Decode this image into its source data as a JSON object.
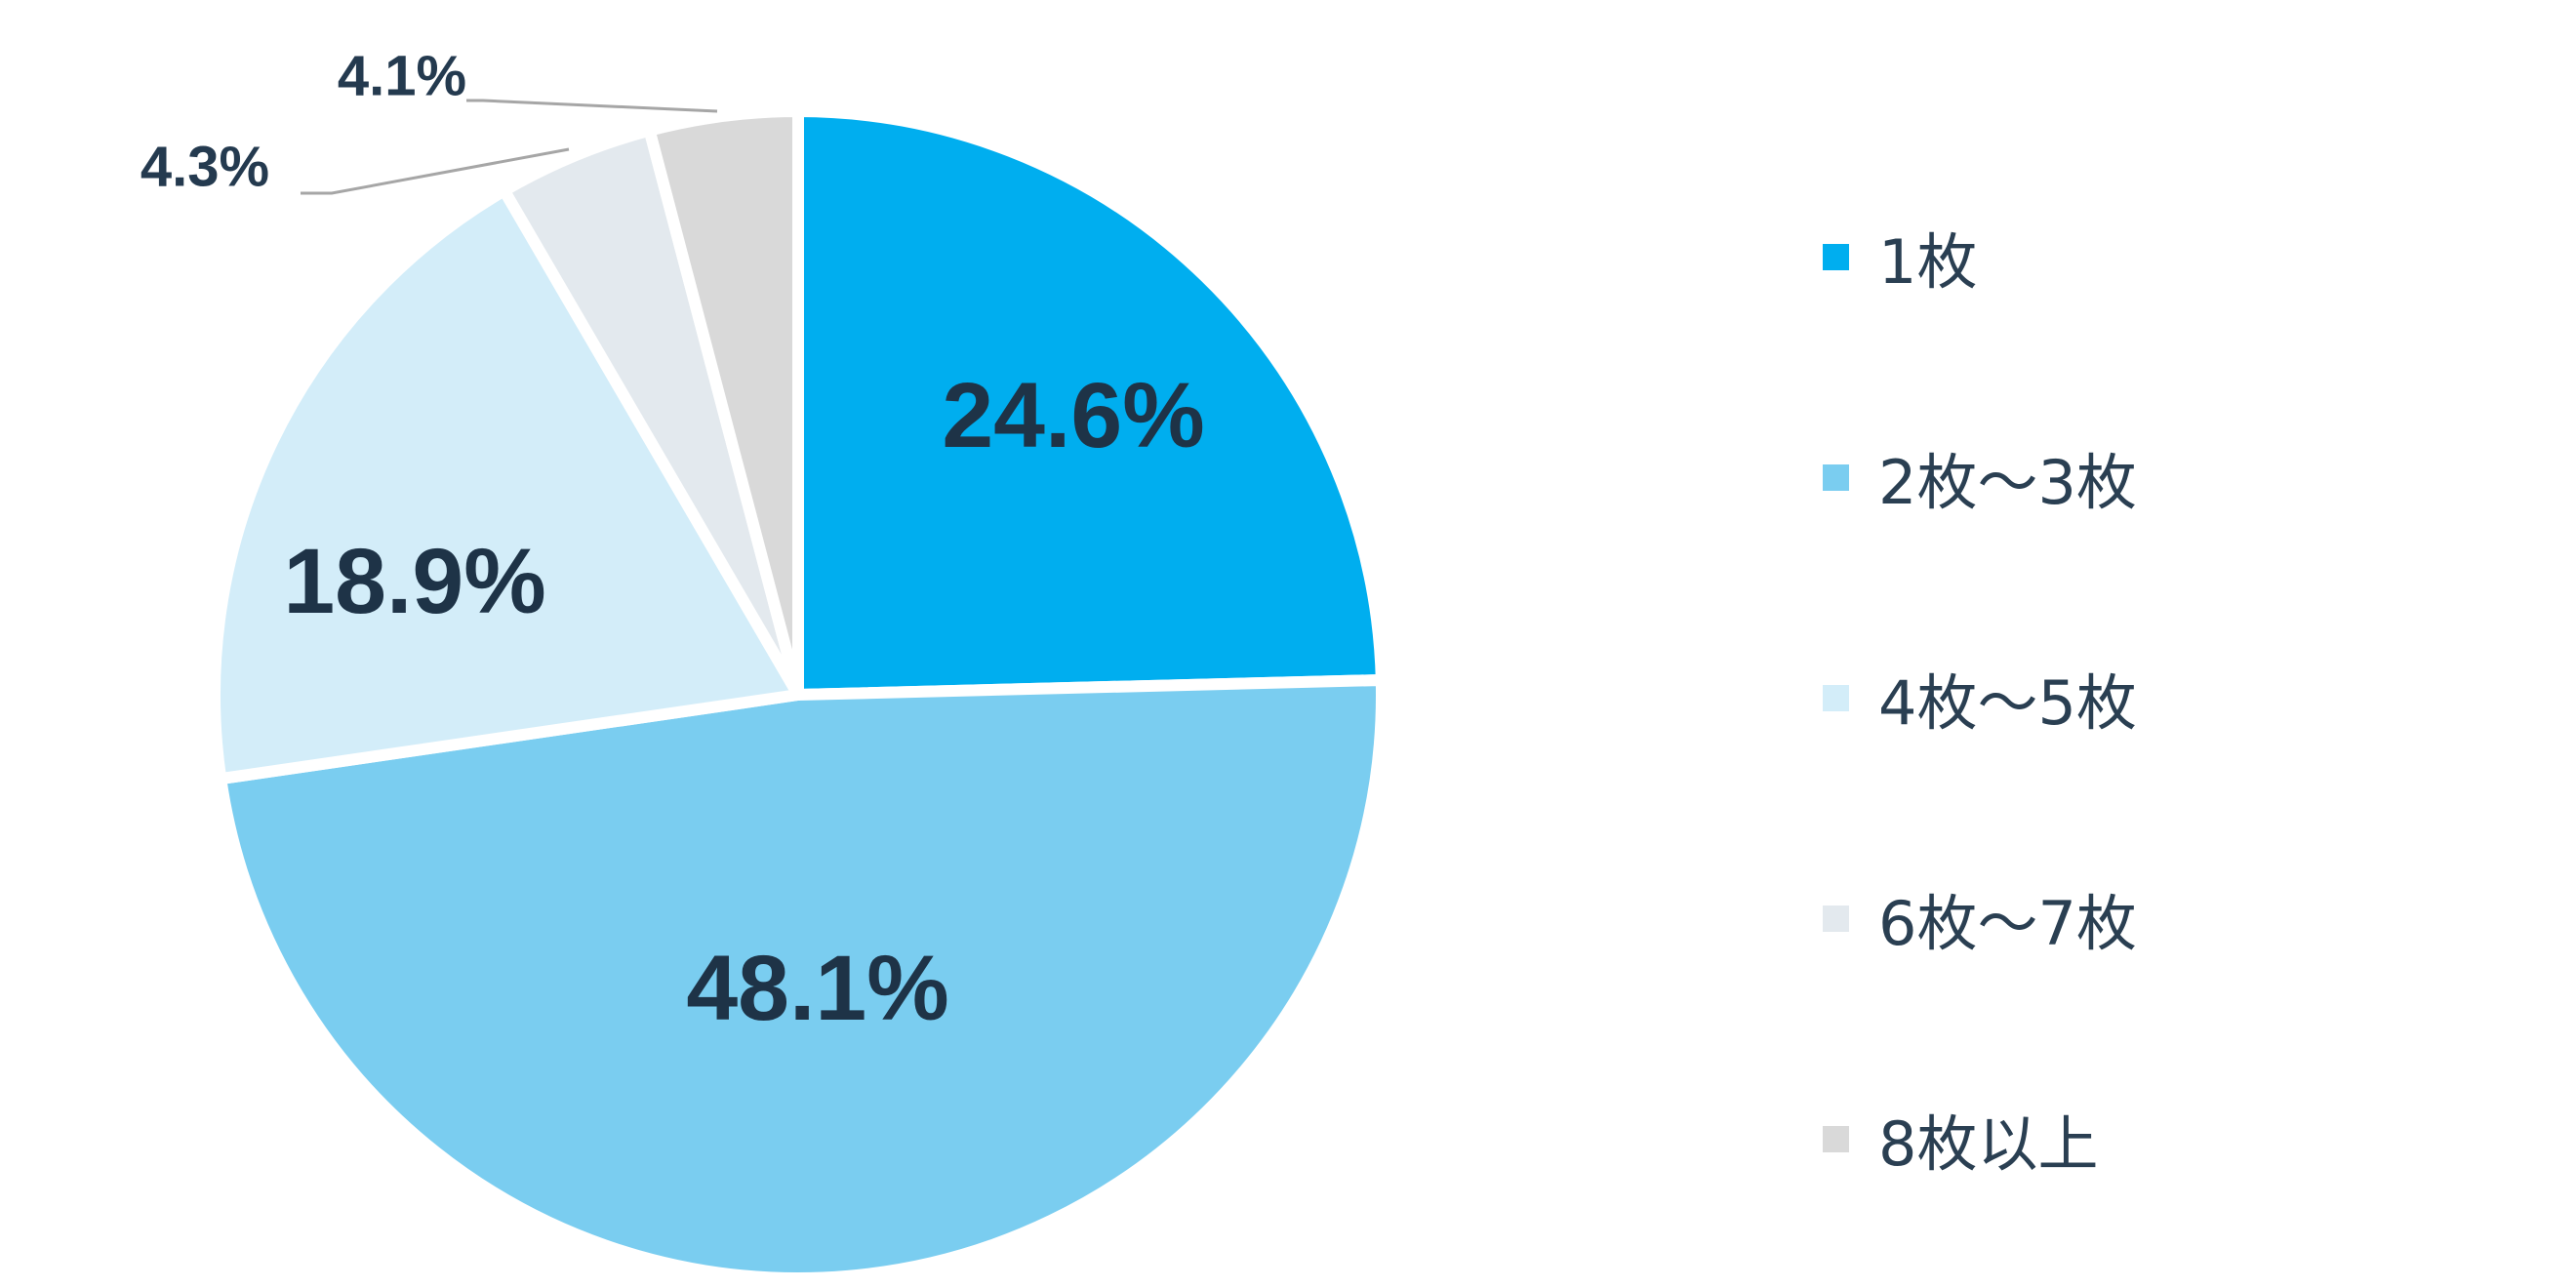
{
  "chart_data": {
    "type": "pie",
    "start_angle": "12 o'clock",
    "direction": "clockwise",
    "legend_position": "right",
    "slices": [
      {
        "label": "1枚",
        "value": 24.6,
        "value_label": "24.6%",
        "color": "#00aeef"
      },
      {
        "label": "2枚～3枚",
        "value": 48.1,
        "value_label": "48.1%",
        "color": "#7acdf0"
      },
      {
        "label": "4枚～5枚",
        "value": 18.9,
        "value_label": "18.9%",
        "color": "#d3edf9"
      },
      {
        "label": "6枚～7枚",
        "value": 4.3,
        "value_label": "4.3%",
        "color": "#e3e9ee"
      },
      {
        "label": "8枚以上",
        "value": 4.1,
        "value_label": "4.1%",
        "color": "#d9d9d9"
      }
    ]
  }
}
